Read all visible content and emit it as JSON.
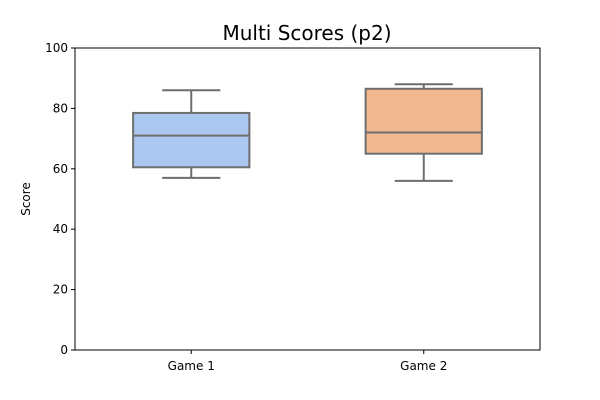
{
  "chart_data": {
    "type": "box",
    "title": "Multi Scores (p2)",
    "xlabel": "",
    "ylabel": "Score",
    "ylim": [
      0,
      100
    ],
    "yticks": [
      0,
      20,
      40,
      60,
      80,
      100
    ],
    "grid": false,
    "categories": [
      "Game 1",
      "Game 2"
    ],
    "boxes": [
      {
        "category": "Game 1",
        "whisker_low": 57,
        "q1": 60.5,
        "median": 71,
        "q3": 78.5,
        "whisker_high": 86,
        "color": "#abc9f0"
      },
      {
        "category": "Game 2",
        "whisker_low": 56,
        "q1": 65,
        "median": 72,
        "q3": 86.5,
        "whisker_high": 88,
        "color": "#f2b890"
      }
    ]
  }
}
